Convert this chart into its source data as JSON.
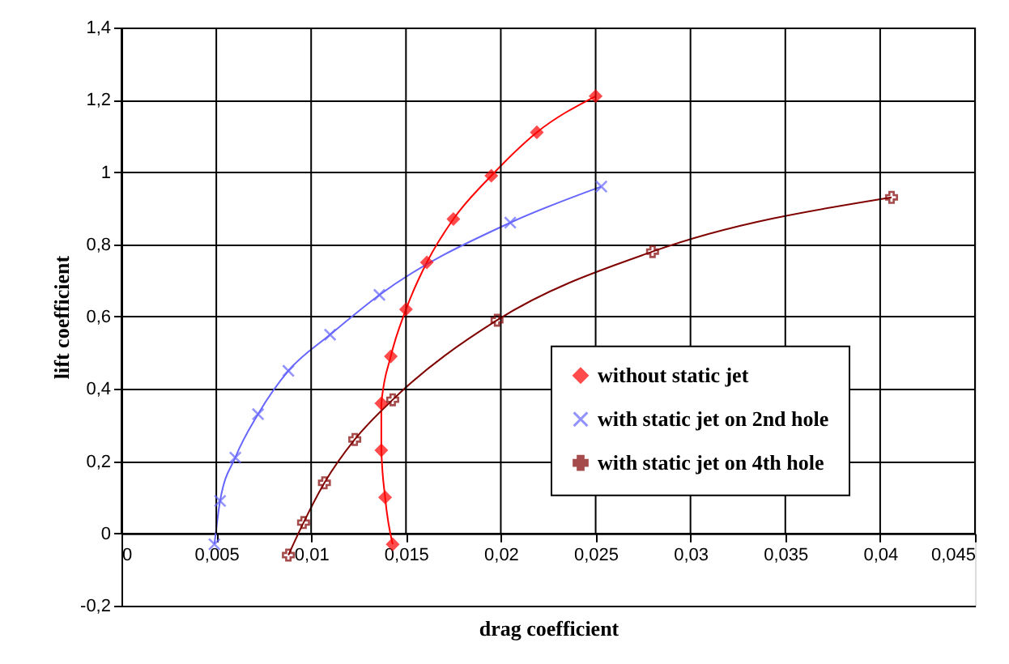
{
  "chart_data": {
    "type": "line",
    "xlabel": "drag coefficient",
    "ylabel": "lift coefficient",
    "xlim": [
      0,
      0.045
    ],
    "ylim": [
      -0.2,
      1.4
    ],
    "xticks": [
      {
        "value": 0,
        "label": "0"
      },
      {
        "value": 0.005,
        "label": "0,005"
      },
      {
        "value": 0.01,
        "label": "0,01"
      },
      {
        "value": 0.015,
        "label": "0,015"
      },
      {
        "value": 0.02,
        "label": "0,02"
      },
      {
        "value": 0.025,
        "label": "0,025"
      },
      {
        "value": 0.03,
        "label": "0,03"
      },
      {
        "value": 0.035,
        "label": "0,035"
      },
      {
        "value": 0.04,
        "label": "0,04"
      },
      {
        "value": 0.045,
        "label": "0,045"
      }
    ],
    "yticks": [
      {
        "value": -0.2,
        "label": "-0,2"
      },
      {
        "value": 0,
        "label": "0"
      },
      {
        "value": 0.2,
        "label": "0,2"
      },
      {
        "value": 0.4,
        "label": "0,4"
      },
      {
        "value": 0.6,
        "label": "0,6"
      },
      {
        "value": 0.8,
        "label": "0,8"
      },
      {
        "value": 1,
        "label": "1"
      },
      {
        "value": 1.2,
        "label": "1,2"
      },
      {
        "value": 1.4,
        "label": "1,4"
      }
    ],
    "grid": true,
    "legend": "bottom right",
    "series": [
      {
        "name": "without static jet",
        "color": "#ff0000",
        "marker": "diamond",
        "x": [
          0.0143,
          0.0139,
          0.0137,
          0.0137,
          0.0142,
          0.015,
          0.0161,
          0.0175,
          0.0195,
          0.0219,
          0.025
        ],
        "values": [
          -0.03,
          0.1,
          0.23,
          0.36,
          0.49,
          0.62,
          0.75,
          0.87,
          0.99,
          1.11,
          1.21
        ]
      },
      {
        "name": "with static jet on 2nd hole",
        "color": "#6666ff",
        "marker": "x",
        "x": [
          0.0049,
          0.0052,
          0.006,
          0.0072,
          0.0088,
          0.011,
          0.0136,
          0.0205,
          0.0253
        ],
        "values": [
          -0.03,
          0.09,
          0.21,
          0.33,
          0.45,
          0.55,
          0.66,
          0.86,
          0.96
        ]
      },
      {
        "name": "with static jet on 4th hole",
        "color": "#800000",
        "marker": "cross",
        "x": [
          0.0088,
          0.0096,
          0.0107,
          0.0123,
          0.0143,
          0.0198,
          0.028,
          0.0406
        ],
        "values": [
          -0.06,
          0.03,
          0.14,
          0.26,
          0.37,
          0.59,
          0.78,
          0.93
        ]
      }
    ]
  }
}
